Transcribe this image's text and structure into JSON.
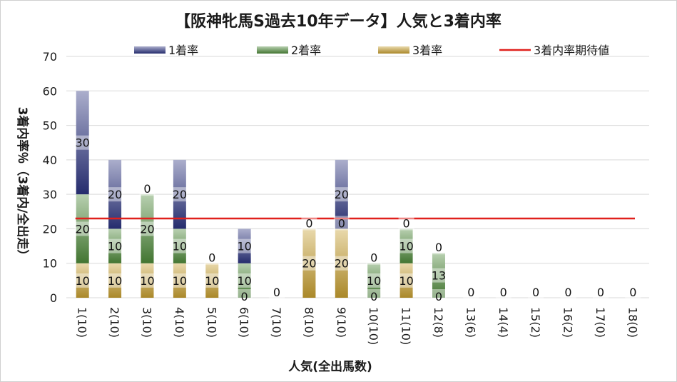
{
  "chart_data": {
    "type": "bar",
    "stacked": true,
    "title": "【阪神牝馬S過去10年データ】人気と3着内率",
    "xlabel": "人気(全出馬数)",
    "ylabel": "3着内率％（3着内/全出走）",
    "ylim": [
      0,
      70
    ],
    "yticks": [
      0,
      10,
      20,
      30,
      40,
      50,
      60,
      70
    ],
    "grid": true,
    "legend_position": "top",
    "categories": [
      "1(10)",
      "2(10)",
      "3(10)",
      "4(10)",
      "5(10)",
      "6(10)",
      "7(10)",
      "8(10)",
      "9(10)",
      "10(10)",
      "11(10)",
      "12(8)",
      "13(6)",
      "14(4)",
      "15(2)",
      "16(2)",
      "17(0)",
      "18(0)"
    ],
    "series": [
      {
        "name": "3着率",
        "color": "#c8a030",
        "values": [
          10,
          10,
          10,
          10,
          10,
          0,
          0,
          20,
          20,
          0,
          10,
          0,
          0,
          0,
          0,
          0,
          0,
          0
        ]
      },
      {
        "name": "2着率",
        "color": "#4e8a3a",
        "values": [
          20,
          10,
          20,
          10,
          0,
          10,
          0,
          0,
          0,
          10,
          10,
          13,
          0,
          0,
          0,
          0,
          0,
          0
        ]
      },
      {
        "name": "1着率",
        "color": "#2c3480",
        "values": [
          30,
          20,
          0,
          20,
          0,
          10,
          0,
          0,
          20,
          0,
          0,
          0,
          0,
          0,
          0,
          0,
          0,
          0
        ]
      }
    ],
    "data_labels": [
      [
        null,
        "30",
        "20",
        "10"
      ],
      [
        null,
        "20",
        "10",
        "10"
      ],
      [
        "0",
        null,
        "20",
        "10"
      ],
      [
        null,
        "20",
        "10",
        "10"
      ],
      [
        null,
        null,
        "0",
        "10"
      ],
      [
        null,
        "10",
        "10",
        "0"
      ],
      [
        "0",
        null,
        null,
        null
      ],
      [
        "0",
        null,
        null,
        "20"
      ],
      [
        null,
        "20",
        "0",
        "20"
      ],
      [
        null,
        "0",
        "10",
        "0"
      ],
      [
        "0",
        null,
        "10",
        "10"
      ],
      [
        null,
        "0",
        "13",
        "0"
      ],
      [
        "0",
        null,
        null,
        null
      ],
      [
        "0",
        null,
        null,
        null
      ],
      [
        "0",
        null,
        null,
        null
      ],
      [
        "0",
        null,
        null,
        null
      ],
      [
        "0",
        null,
        null,
        null
      ],
      [
        "0",
        null,
        null,
        null
      ]
    ],
    "expected_line": {
      "name": "3着内率期待値",
      "color": "#e0201c",
      "value": 23
    }
  }
}
